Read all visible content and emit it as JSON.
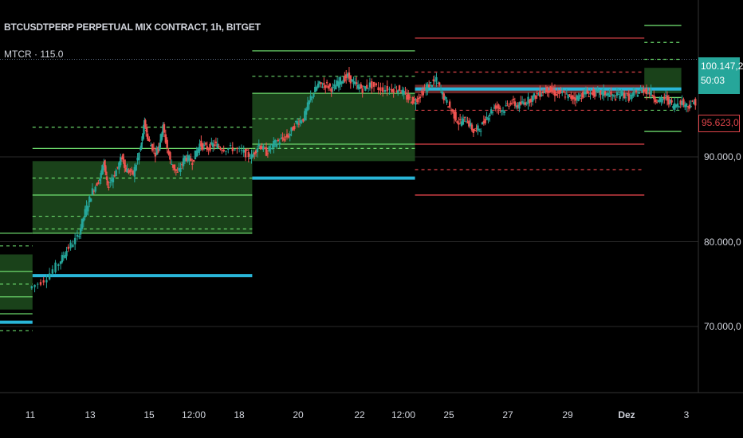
{
  "header": {
    "title": "BTCUSDTPERP PERPETUAL MIX CONTRACT, 1h, BITGET",
    "indicator": "MTCR · 115.0"
  },
  "price_tags": {
    "last_price": "100.147,2",
    "countdown": "50:03",
    "low_label": "95.623,0"
  },
  "colors": {
    "background": "#000000",
    "green_zone": "#1f4d1f",
    "green_line": "#6ad66a",
    "red_line": "#e0444a",
    "red_zone": "#7a2a2a",
    "cyan_line": "#29b6d8",
    "candle_up": "#26a69a",
    "candle_down": "#ef5350",
    "grid": "#2a2a2a"
  },
  "chart_data": {
    "type": "candlestick",
    "title": "BTCUSDTPERP PERPETUAL MIX CONTRACT, 1h, BITGET",
    "xlabel": "",
    "ylabel": "",
    "ylim": [
      60500,
      105500
    ],
    "y_ticks": [
      "90.000,0",
      "80.000,0",
      "70.000,0"
    ],
    "y_tick_values": [
      90000,
      80000,
      70000
    ],
    "x_ticks": [
      "11",
      "13",
      "15",
      "12:00",
      "18",
      "20",
      "22",
      "12:00",
      "25",
      "27",
      "29",
      "Dez",
      "3"
    ],
    "x_tick_bold": [
      false,
      false,
      false,
      false,
      false,
      false,
      false,
      false,
      false,
      false,
      false,
      true,
      false
    ],
    "last_price": 100147.2,
    "session_low": 95623,
    "price_series": [
      [
        0.0,
        74500
      ],
      [
        0.4,
        75500
      ],
      [
        0.8,
        77500
      ],
      [
        1.0,
        79000
      ],
      [
        1.3,
        80500
      ],
      [
        1.5,
        83500
      ],
      [
        1.7,
        86000
      ],
      [
        1.9,
        87500
      ],
      [
        2.0,
        89500
      ],
      [
        2.1,
        86500
      ],
      [
        2.3,
        88000
      ],
      [
        2.5,
        90000
      ],
      [
        2.6,
        88500
      ],
      [
        2.8,
        88000
      ],
      [
        3.0,
        91000
      ],
      [
        3.1,
        94000
      ],
      [
        3.2,
        92000
      ],
      [
        3.4,
        90500
      ],
      [
        3.5,
        91500
      ],
      [
        3.6,
        93500
      ],
      [
        3.8,
        89500
      ],
      [
        4.0,
        88000
      ],
      [
        4.2,
        90000
      ],
      [
        4.4,
        89500
      ],
      [
        4.6,
        91500
      ],
      [
        4.8,
        91000
      ],
      [
        5.0,
        91500
      ],
      [
        5.2,
        91000
      ],
      [
        5.5,
        91000
      ],
      [
        5.8,
        90500
      ],
      [
        6.0,
        90000
      ],
      [
        6.2,
        91500
      ],
      [
        6.4,
        90500
      ],
      [
        6.6,
        91500
      ],
      [
        6.8,
        92000
      ],
      [
        7.0,
        92500
      ],
      [
        7.2,
        94000
      ],
      [
        7.4,
        94500
      ],
      [
        7.6,
        97000
      ],
      [
        7.8,
        98500
      ],
      [
        8.0,
        98500
      ],
      [
        8.2,
        98000
      ],
      [
        8.4,
        99000
      ],
      [
        8.6,
        99500
      ],
      [
        8.8,
        98500
      ],
      [
        9.0,
        98000
      ],
      [
        9.2,
        98500
      ],
      [
        9.5,
        98000
      ],
      [
        9.8,
        98000
      ],
      [
        10.0,
        98000
      ],
      [
        10.2,
        97000
      ],
      [
        10.4,
        96500
      ],
      [
        10.6,
        97500
      ],
      [
        10.8,
        98500
      ],
      [
        11.0,
        99000
      ],
      [
        11.2,
        97000
      ],
      [
        11.4,
        95500
      ],
      [
        11.6,
        94000
      ],
      [
        11.8,
        94500
      ],
      [
        12.0,
        93000
      ],
      [
        12.2,
        93500
      ],
      [
        12.4,
        95000
      ],
      [
        12.6,
        96000
      ],
      [
        12.8,
        95500
      ],
      [
        13.0,
        96500
      ],
      [
        13.2,
        96000
      ],
      [
        13.4,
        96500
      ],
      [
        13.6,
        97000
      ],
      [
        13.8,
        97500
      ],
      [
        14.0,
        98000
      ],
      [
        14.2,
        97500
      ],
      [
        14.4,
        97500
      ],
      [
        14.6,
        97000
      ],
      [
        14.8,
        97000
      ],
      [
        15.0,
        97500
      ],
      [
        15.2,
        97500
      ],
      [
        15.4,
        97500
      ],
      [
        15.6,
        97500
      ],
      [
        15.8,
        97000
      ],
      [
        16.0,
        97500
      ],
      [
        16.2,
        97000
      ],
      [
        16.4,
        97500
      ],
      [
        16.6,
        98000
      ],
      [
        16.8,
        97500
      ],
      [
        17.0,
        96500
      ],
      [
        17.2,
        97000
      ],
      [
        17.4,
        96000
      ],
      [
        17.6,
        96500
      ],
      [
        17.8,
        96000
      ],
      [
        18.0,
        96500
      ],
      [
        18.2,
        96000
      ],
      [
        18.4,
        96500
      ]
    ],
    "levels": [
      {
        "segment": "0",
        "x_from": -1.0,
        "x_to": 0.06,
        "zone": [
          72000,
          78500
        ],
        "solid": [
          71500,
          73500,
          76500,
          81000
        ],
        "dashed": [
          69500,
          75000,
          79500
        ],
        "bottom": 70500,
        "bottom_color": "cyan",
        "line_color": "green"
      },
      {
        "segment": "1",
        "x_from": 0.06,
        "x_to": 6.0,
        "zone": [
          81000,
          89500
        ],
        "solid": [
          91000,
          85500,
          81000
        ],
        "dashed": [
          93500,
          87500,
          83000,
          81500
        ],
        "bottom": 76000,
        "bottom_color": "cyan",
        "line_color": "green"
      },
      {
        "segment": "2",
        "x_from": 6.0,
        "x_to": 10.4,
        "zone": [
          89500,
          97500
        ],
        "solid": [
          102500,
          97500,
          91500
        ],
        "dashed": [
          99500,
          94500,
          91000
        ],
        "bottom": 87500,
        "bottom_color": "cyan",
        "line_color": "green"
      },
      {
        "segment": "3",
        "x_from": 10.4,
        "x_to": 16.6,
        "zone": [
          98500,
          97500
        ],
        "solid": [
          104000,
          91500,
          85500
        ],
        "dashed": [
          100000,
          95500,
          88500
        ],
        "bottom": 98000,
        "bottom_color": "cyan",
        "line_color": "red"
      },
      {
        "segment": "4",
        "x_from": 16.6,
        "x_to": 17.6,
        "zone": [
          100500,
          97500
        ],
        "solid": [
          105500,
          97000,
          93000
        ],
        "dashed": [
          103500,
          101500,
          95500
        ],
        "bottom": 98000,
        "bottom_color": "cyan",
        "line_color": "green"
      }
    ],
    "top_reference": 101500
  }
}
